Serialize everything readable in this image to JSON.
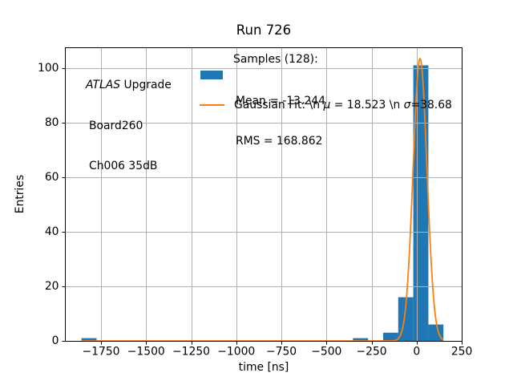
{
  "figure": {
    "background": "#ffffff"
  },
  "colors": {
    "hist": "#1f77b4",
    "fit": "#ff7f0e",
    "grid": "#b0b0b0",
    "spine": "#000000",
    "text": "#000000"
  },
  "annotation": {
    "line1_italic": "ATLAS",
    "line1_rest": " Upgrade",
    "line2": "Board260",
    "line3": "Ch006 35dB"
  },
  "legend": {
    "title": "Samples (128):",
    "hist_line1": "Mean = -13.244",
    "hist_line2": "RMS = 168.862",
    "fit": {
      "prefix": "Gaussian Fit: \\n ",
      "mu": "μ",
      "mid": " = 18.523 \\n ",
      "sigma": "σ",
      "suffix": "=38.68"
    }
  },
  "chart_data": {
    "type": "bar",
    "subtype": "histogram",
    "title": "Run 726",
    "xlabel": "time [ns]",
    "ylabel": "Entries",
    "xlim": [
      -1950,
      254
    ],
    "ylim": [
      0,
      107.6
    ],
    "grid": true,
    "legend_position": "upper center",
    "legend_frame": false,
    "xticks": [
      {
        "value": -1750,
        "label": "−1750"
      },
      {
        "value": -1500,
        "label": "−1500"
      },
      {
        "value": -1250,
        "label": "−1250"
      },
      {
        "value": -1000,
        "label": "−1000"
      },
      {
        "value": -750,
        "label": "−750"
      },
      {
        "value": -500,
        "label": "−500"
      },
      {
        "value": -250,
        "label": "−250"
      },
      {
        "value": 0,
        "label": "0"
      },
      {
        "value": 250,
        "label": "250"
      }
    ],
    "yticks": [
      {
        "value": 0,
        "label": "0"
      },
      {
        "value": 20,
        "label": "20"
      },
      {
        "value": 40,
        "label": "40"
      },
      {
        "value": 60,
        "label": "60"
      },
      {
        "value": 80,
        "label": "80"
      },
      {
        "value": 100,
        "label": "100"
      }
    ],
    "histogram": {
      "total_samples": 128,
      "mean": -13.244,
      "rms": 168.862,
      "bin_start": -1858,
      "bin_width": 83.6,
      "counts": [
        1,
        0,
        0,
        0,
        0,
        0,
        0,
        0,
        0,
        0,
        0,
        0,
        0,
        0,
        0,
        0,
        0,
        0,
        1,
        0,
        3,
        16,
        101,
        6
      ]
    },
    "gaussian_fit": {
      "mu": 18.523,
      "sigma": 38.68,
      "peak_height": 103.5,
      "x_min": -1858,
      "x_max": 148.4
    }
  }
}
